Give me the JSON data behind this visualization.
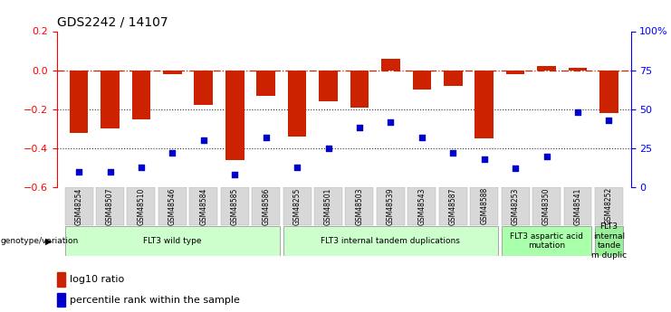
{
  "title": "GDS2242 / 14107",
  "samples": [
    "GSM48254",
    "GSM48507",
    "GSM48510",
    "GSM48546",
    "GSM48584",
    "GSM48585",
    "GSM48586",
    "GSM48255",
    "GSM48501",
    "GSM48503",
    "GSM48539",
    "GSM48543",
    "GSM48587",
    "GSM48588",
    "GSM48253",
    "GSM48350",
    "GSM48541",
    "GSM48252"
  ],
  "log10_ratio": [
    -0.32,
    -0.3,
    -0.25,
    -0.02,
    -0.18,
    -0.46,
    -0.13,
    -0.34,
    -0.16,
    -0.19,
    0.06,
    -0.1,
    -0.08,
    -0.35,
    -0.02,
    0.02,
    0.01,
    -0.22
  ],
  "percentile_rank": [
    10,
    10,
    13,
    22,
    30,
    8,
    32,
    13,
    25,
    38,
    42,
    32,
    22,
    18,
    12,
    20,
    48,
    43
  ],
  "groups": [
    {
      "label": "FLT3 wild type",
      "start": 0,
      "end": 6,
      "color": "#ccffcc"
    },
    {
      "label": "FLT3 internal tandem duplications",
      "start": 7,
      "end": 13,
      "color": "#ccffcc"
    },
    {
      "label": "FLT3 aspartic acid\nmutation",
      "start": 14,
      "end": 16,
      "color": "#aaffaa"
    },
    {
      "label": "FLT3\ninternal\ntande\nm duplic",
      "start": 17,
      "end": 17,
      "color": "#99ee99"
    }
  ],
  "ylim_left": [
    -0.6,
    0.2
  ],
  "ylim_right": [
    0,
    100
  ],
  "yticks_left": [
    -0.6,
    -0.4,
    -0.2,
    0.0,
    0.2
  ],
  "yticks_right": [
    0,
    25,
    50,
    75,
    100
  ],
  "ytick_labels_right": [
    "0",
    "25",
    "50",
    "75",
    "100%"
  ],
  "bar_color": "#cc2200",
  "dot_color": "#0000cc",
  "hline_color": "#cc2200",
  "dotted_line_color": "#333333",
  "background_color": "#ffffff",
  "fig_width": 7.41,
  "fig_height": 3.45,
  "dpi": 100
}
